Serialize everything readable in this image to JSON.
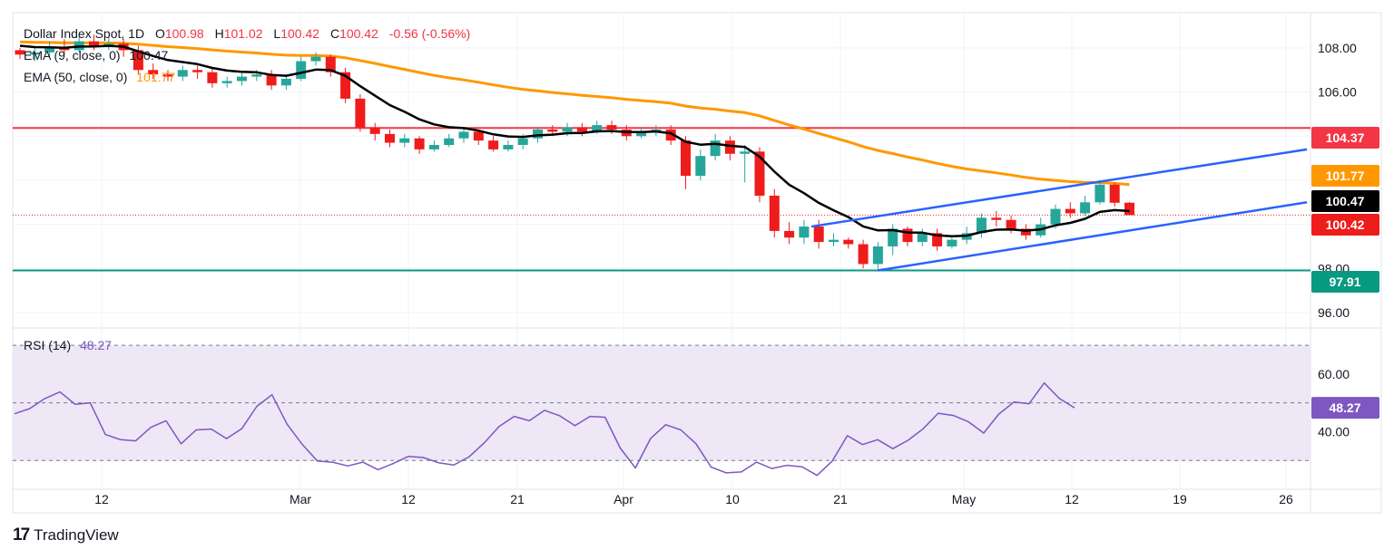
{
  "header": {
    "symbol": "Dollar Index Spot, 1D",
    "o_label": "O",
    "o_value": "100.98",
    "h_label": "H",
    "h_value": "101.02",
    "l_label": "L",
    "l_value": "100.42",
    "c_label": "C",
    "c_value": "100.42",
    "change": "-0.56 (-0.56%)"
  },
  "legend": {
    "ema9_label": "EMA (9, close, 0)",
    "ema9_value": "100.47",
    "ema50_label": "EMA (50, close, 0)",
    "ema50_value": "101.77",
    "rsi_label": "RSI (14)",
    "rsi_value": "48.27"
  },
  "colors": {
    "up": "#26a69a",
    "down": "#ef1c1c",
    "ema9": "#000000",
    "ema50": "#ff9800",
    "channel": "#2962ff",
    "resistance": "#f23645",
    "support": "#089981",
    "rsi_line": "#7e57c2",
    "rsi_band": "#ede7f6",
    "grid": "#f0f3fa"
  },
  "footer": {
    "brand": "TradingView",
    "logo": "17"
  },
  "chart_data": [
    {
      "type": "candlestick",
      "title": "Dollar Index Spot, 1D",
      "x_ticks": [
        "12",
        "Mar",
        "12",
        "21",
        "Apr",
        "10",
        "21",
        "May",
        "12",
        "19",
        "26"
      ],
      "y_ticks": [
        "96.00",
        "98.00",
        "100.00",
        "102.00",
        "104.00",
        "106.00",
        "108.00"
      ],
      "ylim": [
        95.3,
        109.6
      ],
      "price_tags": [
        {
          "value": 104.37,
          "label": "104.37",
          "color": "#f23645"
        },
        {
          "value": 101.77,
          "label": "101.77",
          "color": "#ff9800"
        },
        {
          "value": 100.47,
          "label": "100.47",
          "color": "#000000"
        },
        {
          "value": 100.42,
          "label": "100.42",
          "color": "#ef1c1c"
        },
        {
          "value": 97.91,
          "label": "97.91",
          "color": "#089981"
        }
      ],
      "horizontal_levels": [
        {
          "value": 104.37,
          "kind": "resistance"
        },
        {
          "value": 97.91,
          "kind": "support"
        },
        {
          "value": 100.42,
          "kind": "last-close"
        }
      ],
      "candles": [
        [
          107.9,
          107.7,
          108.0,
          107.5
        ],
        [
          107.7,
          107.8,
          108.0,
          107.4
        ],
        [
          107.8,
          108.0,
          108.3,
          107.6
        ],
        [
          108.0,
          107.9,
          108.4,
          107.7
        ],
        [
          107.9,
          108.3,
          108.5,
          107.8
        ],
        [
          108.3,
          108.1,
          108.6,
          107.9
        ],
        [
          108.1,
          108.2,
          108.5,
          107.9
        ],
        [
          108.2,
          107.9,
          108.4,
          107.6
        ],
        [
          107.9,
          107.0,
          108.1,
          106.8
        ],
        [
          107.0,
          106.8,
          107.3,
          106.6
        ],
        [
          106.8,
          106.7,
          107.0,
          106.5
        ],
        [
          106.7,
          107.0,
          107.2,
          106.5
        ],
        [
          107.0,
          106.9,
          107.2,
          106.6
        ],
        [
          106.9,
          106.4,
          107.1,
          106.2
        ],
        [
          106.4,
          106.5,
          106.7,
          106.2
        ],
        [
          106.5,
          106.7,
          106.9,
          106.3
        ],
        [
          106.7,
          106.8,
          107.0,
          106.5
        ],
        [
          106.8,
          106.3,
          107.0,
          106.1
        ],
        [
          106.3,
          106.6,
          106.8,
          106.1
        ],
        [
          106.6,
          107.4,
          107.6,
          106.5
        ],
        [
          107.4,
          107.6,
          107.8,
          107.2
        ],
        [
          107.6,
          106.9,
          107.7,
          106.7
        ],
        [
          106.9,
          105.7,
          107.1,
          105.5
        ],
        [
          105.7,
          104.4,
          105.9,
          104.2
        ],
        [
          104.4,
          104.1,
          104.6,
          103.8
        ],
        [
          104.1,
          103.7,
          104.3,
          103.5
        ],
        [
          103.7,
          103.9,
          104.1,
          103.5
        ],
        [
          103.9,
          103.4,
          104.0,
          103.2
        ],
        [
          103.4,
          103.6,
          103.8,
          103.3
        ],
        [
          103.6,
          103.9,
          104.1,
          103.5
        ],
        [
          103.9,
          104.2,
          104.4,
          103.7
        ],
        [
          104.2,
          103.8,
          104.3,
          103.6
        ],
        [
          103.8,
          103.4,
          104.0,
          103.3
        ],
        [
          103.4,
          103.6,
          103.8,
          103.3
        ],
        [
          103.6,
          103.9,
          104.1,
          103.4
        ],
        [
          103.9,
          104.3,
          104.4,
          103.7
        ],
        [
          104.3,
          104.2,
          104.5,
          104.0
        ],
        [
          104.2,
          104.4,
          104.6,
          104.0
        ],
        [
          104.4,
          104.2,
          104.6,
          104.0
        ],
        [
          104.2,
          104.5,
          104.7,
          104.1
        ],
        [
          104.5,
          104.3,
          104.7,
          104.1
        ],
        [
          104.3,
          104.0,
          104.5,
          103.8
        ],
        [
          104.0,
          104.2,
          104.4,
          103.9
        ],
        [
          104.2,
          104.3,
          104.5,
          104.0
        ],
        [
          104.3,
          103.8,
          104.5,
          103.6
        ],
        [
          103.8,
          102.2,
          104.0,
          101.6
        ],
        [
          102.2,
          103.1,
          103.4,
          102.0
        ],
        [
          103.1,
          103.8,
          104.1,
          102.9
        ],
        [
          103.8,
          103.2,
          104.0,
          102.9
        ],
        [
          103.2,
          103.3,
          103.6,
          101.9
        ],
        [
          103.3,
          101.3,
          103.5,
          101.0
        ],
        [
          101.3,
          99.7,
          101.6,
          99.4
        ],
        [
          99.7,
          99.4,
          100.1,
          99.1
        ],
        [
          99.4,
          99.9,
          100.2,
          99.1
        ],
        [
          99.9,
          99.2,
          100.2,
          98.9
        ],
        [
          99.2,
          99.3,
          99.6,
          99.0
        ],
        [
          99.3,
          99.1,
          99.4,
          98.9
        ],
        [
          99.1,
          98.2,
          99.3,
          98.0
        ],
        [
          98.2,
          99.0,
          99.2,
          97.9
        ],
        [
          99.0,
          99.8,
          100.0,
          98.6
        ],
        [
          99.8,
          99.2,
          99.9,
          99.0
        ],
        [
          99.2,
          99.6,
          99.8,
          99.0
        ],
        [
          99.6,
          99.0,
          99.8,
          98.8
        ],
        [
          99.0,
          99.3,
          99.5,
          98.9
        ],
        [
          99.3,
          99.6,
          99.9,
          99.1
        ],
        [
          99.6,
          100.3,
          100.5,
          99.4
        ],
        [
          100.3,
          100.2,
          100.6,
          99.9
        ],
        [
          100.2,
          99.8,
          100.4,
          99.6
        ],
        [
          99.8,
          99.5,
          100.0,
          99.3
        ],
        [
          99.5,
          100.0,
          100.3,
          99.4
        ],
        [
          100.0,
          100.7,
          100.9,
          99.8
        ],
        [
          100.7,
          100.5,
          101.0,
          100.3
        ],
        [
          100.5,
          101.0,
          101.3,
          100.4
        ],
        [
          101.0,
          101.8,
          102.0,
          100.9
        ],
        [
          101.8,
          100.98,
          101.9,
          100.8
        ],
        [
          100.98,
          100.42,
          101.02,
          100.42
        ]
      ]
    },
    {
      "type": "line",
      "title": "RSI (14)",
      "y_ticks": [
        "40.00",
        "60.00"
      ],
      "ylim": [
        20,
        76
      ],
      "bands": {
        "upper": 70,
        "middle": 50,
        "lower": 30
      },
      "last_value": 48.27,
      "last_label": "48.27",
      "series": [
        {
          "name": "RSI (14)",
          "values": [
            46.2,
            48.0,
            51.5,
            53.8,
            49.5,
            50.0,
            39.0,
            37.2,
            36.8,
            41.5,
            43.8,
            35.8,
            40.6,
            40.9,
            37.6,
            41.0,
            48.8,
            52.8,
            42.6,
            35.6,
            29.8,
            29.4,
            28.1,
            29.4,
            26.8,
            28.9,
            31.4,
            31.0,
            29.2,
            28.4,
            31.2,
            36.0,
            41.8,
            45.3,
            43.8,
            47.4,
            45.5,
            42.1,
            45.3,
            45.0,
            34.3,
            27.4,
            37.6,
            42.4,
            40.6,
            35.8,
            27.7,
            25.7,
            26.0,
            29.4,
            27.2,
            28.3,
            27.8,
            24.8,
            29.8,
            38.6,
            35.5,
            37.2,
            34.1,
            37.0,
            41.0,
            46.4,
            45.6,
            43.4,
            39.5,
            46.1,
            50.3,
            49.7,
            56.9,
            51.5,
            48.27
          ]
        }
      ]
    }
  ]
}
